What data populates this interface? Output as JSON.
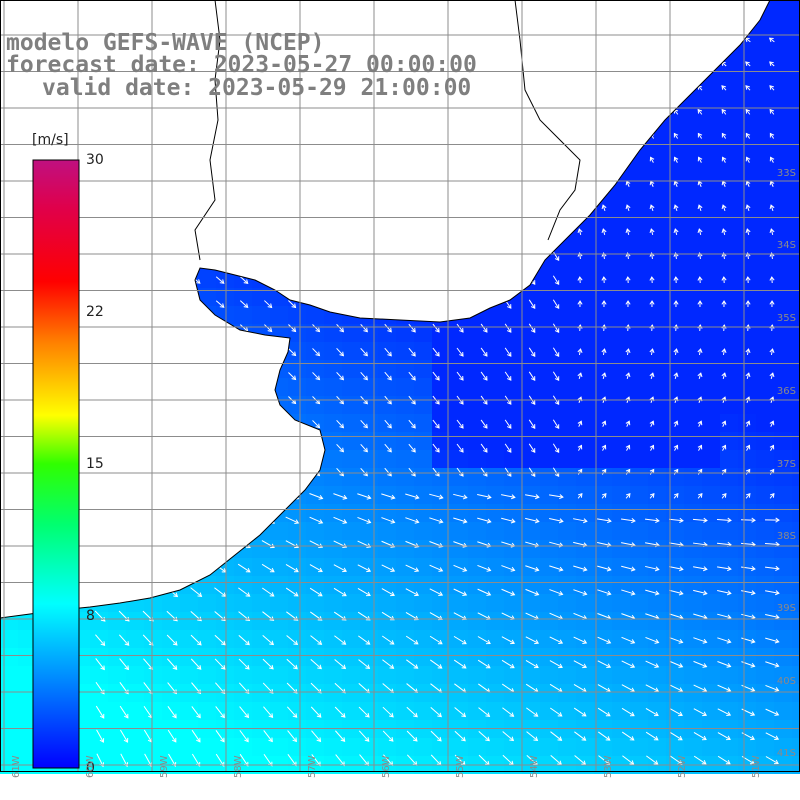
{
  "title_lines": {
    "line1": "modelo GEFS-WAVE (NCEP)",
    "line2": "forecast date: 2023-05-27 00:00:00",
    "line3": "valid date: 2023-05-29 21:00:00"
  },
  "colorbar": {
    "unit": "[m/s]",
    "min": 0,
    "max": 30,
    "ticks": [
      "30",
      "22",
      "15",
      "8",
      "0"
    ],
    "tick_values": [
      30,
      22,
      15,
      8,
      0
    ],
    "colors": [
      "#0000ff",
      "#0080ff",
      "#00e0ff",
      "#00ff80",
      "#40ff00",
      "#ffff00",
      "#ff8000",
      "#ff0000",
      "#e0005a",
      "#c01080"
    ]
  },
  "map": {
    "variable": "wind speed and direction",
    "lat_labels": [
      "33S",
      "34S",
      "35S",
      "36S",
      "37S",
      "38S",
      "39S",
      "40S",
      "41S"
    ],
    "lon_labels": [
      "61W",
      "60W",
      "59W",
      "58W",
      "57W",
      "56W",
      "55W",
      "54W",
      "53W",
      "52W",
      "51W"
    ],
    "land_color": "#ffffff",
    "grid_color": "#8c8c8c"
  }
}
